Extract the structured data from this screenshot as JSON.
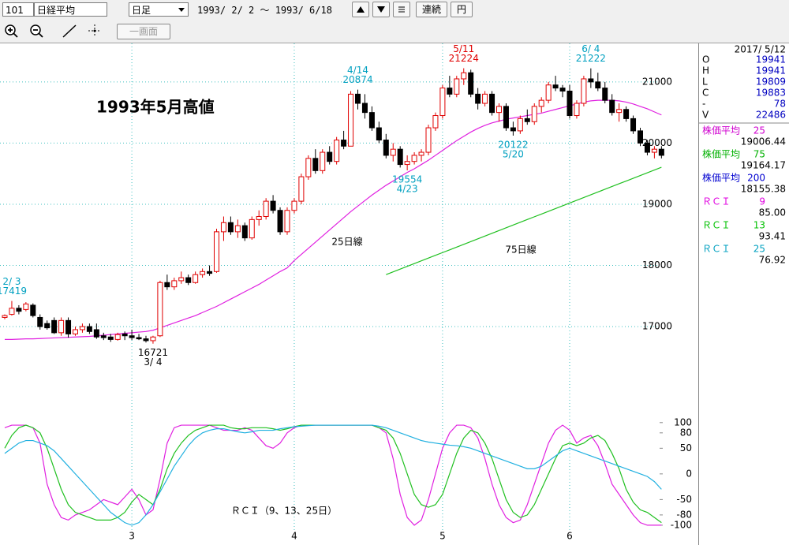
{
  "toolbar": {
    "code": "101",
    "name": "日経平均",
    "period": "日足",
    "range": "1993/ 2/ 2 ～ 1993/ 6/18",
    "buttons": [
      "連続",
      "円"
    ],
    "single_screen": "一画面"
  },
  "info_panel": {
    "date": "2017/ 5/12",
    "rows": [
      {
        "label": "O",
        "value": "19941"
      },
      {
        "label": "H",
        "value": "19941"
      },
      {
        "label": "L",
        "value": "19809"
      },
      {
        "label": "C",
        "value": "19883"
      },
      {
        "label": "-",
        "value": "78"
      },
      {
        "label": "V",
        "value": "22486"
      }
    ],
    "indicators": [
      {
        "label": "株価平均",
        "param": "25",
        "value": "19006.44",
        "color": "#d000d0"
      },
      {
        "label": "株価平均",
        "param": "75",
        "value": "19164.17",
        "color": "#00b000"
      },
      {
        "label": "株価平均",
        "param": "200",
        "value": "18155.38",
        "color": "#0000d0"
      },
      {
        "label": "ＲＣＩ",
        "param": "9",
        "value": "85.00",
        "color": "#e000e0"
      },
      {
        "label": "ＲＣＩ",
        "param": "13",
        "value": "93.41",
        "color": "#00c000"
      },
      {
        "label": "ＲＣＩ",
        "param": "25",
        "value": "76.92",
        "color": "#00a0c0"
      }
    ]
  },
  "chart_data": [
    {
      "type": "candlestick",
      "title": "1993年5月高値",
      "categories": [
        null,
        null,
        null,
        null,
        null,
        null,
        null,
        null,
        null,
        null,
        null,
        null,
        null,
        null,
        null,
        null,
        null,
        null,
        "3",
        null,
        null,
        null,
        null,
        null,
        null,
        null,
        null,
        null,
        null,
        null,
        null,
        null,
        null,
        null,
        null,
        null,
        null,
        null,
        null,
        null,
        null,
        "4",
        null,
        null,
        null,
        null,
        null,
        null,
        null,
        null,
        null,
        null,
        null,
        null,
        null,
        null,
        null,
        null,
        null,
        null,
        null,
        null,
        "5",
        null,
        null,
        null,
        null,
        null,
        null,
        null,
        null,
        null,
        null,
        null,
        null,
        null,
        null,
        null,
        null,
        null,
        "6",
        null,
        null,
        null,
        null,
        null,
        null,
        null,
        null,
        null,
        null,
        null,
        null,
        null
      ],
      "open": [
        17150,
        17200,
        17300,
        17280,
        17350,
        17150,
        17050,
        17100,
        16900,
        17100,
        16880,
        16950,
        17000,
        16950,
        16850,
        16830,
        16790,
        16880,
        16850,
        16820,
        16800,
        16770,
        16850,
        17720,
        17650,
        17750,
        17800,
        17720,
        17850,
        17900,
        17900,
        18550,
        18700,
        18550,
        18650,
        18450,
        18750,
        18800,
        19050,
        18900,
        18550,
        18900,
        19050,
        19450,
        19750,
        19550,
        19850,
        19700,
        20050,
        19950,
        20800,
        20650,
        20500,
        20250,
        20050,
        19800,
        19900,
        19650,
        19700,
        19800,
        19850,
        20250,
        20450,
        20900,
        20800,
        21050,
        21150,
        20800,
        20650,
        20800,
        20500,
        20600,
        20250,
        20200,
        20400,
        20350,
        20600,
        20700,
        20950,
        20900,
        20850,
        20450,
        20650,
        21050,
        21000,
        20900,
        20700,
        20500,
        20550,
        20400,
        20200,
        20000,
        19850,
        19900
      ],
      "high": [
        17200,
        17419,
        17350,
        17400,
        17380,
        17200,
        17100,
        17150,
        17150,
        17150,
        17000,
        17050,
        17050,
        17050,
        16900,
        16880,
        16900,
        16920,
        16950,
        16880,
        16850,
        16850,
        17750,
        17850,
        17800,
        17900,
        17850,
        17900,
        17950,
        18000,
        18600,
        18800,
        18800,
        18750,
        18700,
        18800,
        18900,
        19100,
        19150,
        18950,
        18950,
        19100,
        19500,
        19800,
        19900,
        19900,
        19950,
        20100,
        20200,
        20850,
        20874,
        20800,
        20600,
        20350,
        20150,
        20000,
        19950,
        19800,
        19850,
        19900,
        20300,
        20500,
        20950,
        21100,
        21100,
        21224,
        21200,
        20900,
        20850,
        20850,
        20650,
        20650,
        20350,
        20450,
        20550,
        20650,
        20750,
        21000,
        21100,
        20950,
        20950,
        20700,
        21100,
        21222,
        21150,
        21000,
        20800,
        20650,
        20600,
        20450,
        20250,
        20050,
        19950,
        19950
      ],
      "low": [
        17120,
        17180,
        17200,
        17250,
        17150,
        16950,
        16950,
        16880,
        16850,
        16820,
        16850,
        16900,
        16880,
        16800,
        16780,
        16750,
        16770,
        16780,
        16780,
        16780,
        16740,
        16721,
        16830,
        17600,
        17600,
        17700,
        17680,
        17700,
        17800,
        17830,
        17880,
        18400,
        18500,
        18450,
        18400,
        18420,
        18650,
        18750,
        18850,
        18500,
        18500,
        18850,
        19000,
        19400,
        19500,
        19500,
        19650,
        19650,
        19900,
        19950,
        20550,
        20400,
        20200,
        20000,
        19750,
        19700,
        19600,
        19554,
        19650,
        19700,
        19800,
        20200,
        20400,
        20750,
        20750,
        20950,
        20750,
        20550,
        20600,
        20450,
        20350,
        20200,
        20122,
        20150,
        20300,
        20300,
        20500,
        20650,
        20850,
        20750,
        20400,
        20400,
        20600,
        20900,
        20850,
        20650,
        20450,
        20350,
        20350,
        20150,
        19950,
        19800,
        19750,
        19750
      ],
      "close": [
        17180,
        17300,
        17250,
        17370,
        17180,
        17000,
        16980,
        16900,
        17100,
        16880,
        16950,
        17000,
        16920,
        16830,
        16820,
        16790,
        16870,
        16850,
        16820,
        16800,
        16770,
        16830,
        17720,
        17650,
        17750,
        17800,
        17720,
        17850,
        17900,
        17870,
        18550,
        18700,
        18550,
        18650,
        18450,
        18750,
        18800,
        19050,
        18900,
        18550,
        18900,
        19050,
        19450,
        19750,
        19550,
        19850,
        19700,
        20050,
        19950,
        20800,
        20650,
        20500,
        20250,
        20050,
        19800,
        19900,
        19650,
        19700,
        19800,
        19850,
        20250,
        20450,
        20900,
        20800,
        21050,
        21150,
        20800,
        20650,
        20800,
        20500,
        20600,
        20250,
        20200,
        20400,
        20350,
        20600,
        20700,
        20950,
        20900,
        20850,
        20450,
        20650,
        21050,
        21000,
        20900,
        20700,
        20500,
        20550,
        20400,
        20200,
        20000,
        19850,
        19900,
        19800
      ],
      "up_color": "#e00000",
      "down_color": "#000000",
      "series": [
        {
          "name": "25日線",
          "color": "#e020e0",
          "values": [
            16790,
            16790,
            16795,
            16800,
            16800,
            16805,
            16810,
            16815,
            16820,
            16825,
            16830,
            16835,
            16840,
            16850,
            16860,
            16870,
            16880,
            16890,
            16900,
            16910,
            16920,
            16940,
            16980,
            17020,
            17060,
            17100,
            17140,
            17180,
            17230,
            17280,
            17330,
            17390,
            17450,
            17510,
            17570,
            17630,
            17690,
            17760,
            17830,
            17900,
            17960,
            18080,
            18180,
            18280,
            18380,
            18480,
            18580,
            18680,
            18780,
            18880,
            18970,
            19060,
            19150,
            19230,
            19310,
            19380,
            19450,
            19520,
            19580,
            19650,
            19720,
            19800,
            19880,
            19960,
            20040,
            20110,
            20180,
            20240,
            20290,
            20330,
            20360,
            20390,
            20410,
            20430,
            20450,
            20470,
            20490,
            20520,
            20550,
            20580,
            20610,
            20640,
            20670,
            20690,
            20700,
            20700,
            20700,
            20690,
            20670,
            20640,
            20600,
            20560,
            20510,
            20460
          ]
        },
        {
          "name": "75日線",
          "color": "#20c020",
          "values": [
            null,
            null,
            null,
            null,
            null,
            null,
            null,
            null,
            null,
            null,
            null,
            null,
            null,
            null,
            null,
            null,
            null,
            null,
            null,
            null,
            null,
            null,
            null,
            null,
            null,
            null,
            null,
            null,
            null,
            null,
            null,
            null,
            null,
            null,
            null,
            null,
            null,
            null,
            null,
            null,
            null,
            null,
            null,
            null,
            null,
            null,
            null,
            null,
            null,
            null,
            null,
            null,
            null,
            null,
            17850,
            17895,
            17940,
            17985,
            18030,
            18075,
            18120,
            18165,
            18210,
            18255,
            18300,
            18345,
            18390,
            18435,
            18480,
            18525,
            18570,
            18615,
            18660,
            18705,
            18750,
            18795,
            18840,
            18885,
            18930,
            18975,
            19020,
            19065,
            19110,
            19155,
            19200,
            19245,
            19290,
            19335,
            19380,
            19425,
            19470,
            19515,
            19560,
            19605
          ]
        }
      ],
      "annotations": [
        {
          "label": "2/ 3",
          "value": 17419,
          "color": "#00a0c0"
        },
        {
          "label": "3/ 4",
          "value": 16721,
          "color": "#000000"
        },
        {
          "label": "4/14",
          "value": 20874,
          "color": "#00a0c0"
        },
        {
          "label": "4/23",
          "value": 19554,
          "color": "#00a0c0"
        },
        {
          "label": "5/11",
          "value": 21224,
          "color": "#e00000"
        },
        {
          "label": "5/20",
          "value": 20122,
          "color": "#00a0c0"
        },
        {
          "label": "6/ 4",
          "value": 21222,
          "color": "#00a0c0"
        }
      ],
      "ylim": [
        15570,
        21630
      ],
      "yticks": [
        17000,
        18000,
        19000,
        20000,
        21000
      ],
      "grid": true
    },
    {
      "type": "line",
      "title": "ＲＣＩ（9、13、25日）",
      "series": [
        {
          "color": "#e020e0",
          "values": [
            90,
            95,
            95,
            95,
            90,
            60,
            -20,
            -60,
            -85,
            -90,
            -80,
            -75,
            -70,
            -60,
            -50,
            -55,
            -60,
            -45,
            -30,
            -50,
            -80,
            -70,
            -10,
            60,
            90,
            95,
            95,
            95,
            95,
            95,
            90,
            85,
            85,
            85,
            90,
            85,
            70,
            55,
            50,
            60,
            80,
            90,
            95,
            95,
            95,
            95,
            95,
            95,
            95,
            95,
            95,
            95,
            95,
            90,
            80,
            30,
            -40,
            -85,
            -100,
            -90,
            -50,
            0,
            50,
            80,
            95,
            95,
            90,
            70,
            30,
            -20,
            -60,
            -85,
            -95,
            -90,
            -60,
            -20,
            20,
            60,
            85,
            95,
            85,
            60,
            70,
            75,
            55,
            20,
            -20,
            -40,
            -60,
            -80,
            -95,
            -100,
            -100,
            -100
          ]
        },
        {
          "color": "#20c020",
          "values": [
            50,
            75,
            90,
            95,
            90,
            80,
            50,
            10,
            -30,
            -60,
            -75,
            -80,
            -85,
            -90,
            -90,
            -90,
            -85,
            -75,
            -55,
            -40,
            -50,
            -60,
            -30,
            10,
            40,
            60,
            75,
            85,
            90,
            95,
            95,
            95,
            90,
            88,
            88,
            90,
            90,
            90,
            88,
            85,
            88,
            92,
            95,
            95,
            95,
            95,
            95,
            95,
            95,
            95,
            95,
            95,
            95,
            90,
            85,
            70,
            40,
            0,
            -40,
            -60,
            -65,
            -60,
            -40,
            0,
            40,
            70,
            85,
            80,
            60,
            30,
            -10,
            -50,
            -75,
            -85,
            -80,
            -60,
            -30,
            0,
            30,
            55,
            60,
            55,
            60,
            70,
            75,
            65,
            40,
            10,
            -30,
            -55,
            -70,
            -75,
            -85,
            -95
          ]
        },
        {
          "color": "#20b0e0",
          "values": [
            40,
            50,
            60,
            65,
            65,
            60,
            55,
            45,
            30,
            15,
            0,
            -15,
            -30,
            -45,
            -60,
            -75,
            -85,
            -95,
            -100,
            -95,
            -80,
            -60,
            -35,
            -10,
            15,
            35,
            55,
            70,
            80,
            85,
            88,
            88,
            85,
            82,
            80,
            82,
            85,
            85,
            85,
            88,
            90,
            92,
            93,
            94,
            95,
            95,
            95,
            95,
            95,
            95,
            95,
            95,
            95,
            93,
            90,
            85,
            80,
            75,
            70,
            65,
            62,
            60,
            58,
            56,
            55,
            53,
            50,
            45,
            40,
            35,
            30,
            25,
            20,
            15,
            10,
            10,
            15,
            25,
            35,
            45,
            50,
            45,
            40,
            35,
            30,
            25,
            20,
            15,
            10,
            5,
            0,
            -5,
            -15,
            -30
          ]
        }
      ],
      "ylim": [
        -114,
        112
      ],
      "yticks": [
        100,
        80,
        50,
        0,
        -50,
        -80,
        -100
      ]
    }
  ]
}
